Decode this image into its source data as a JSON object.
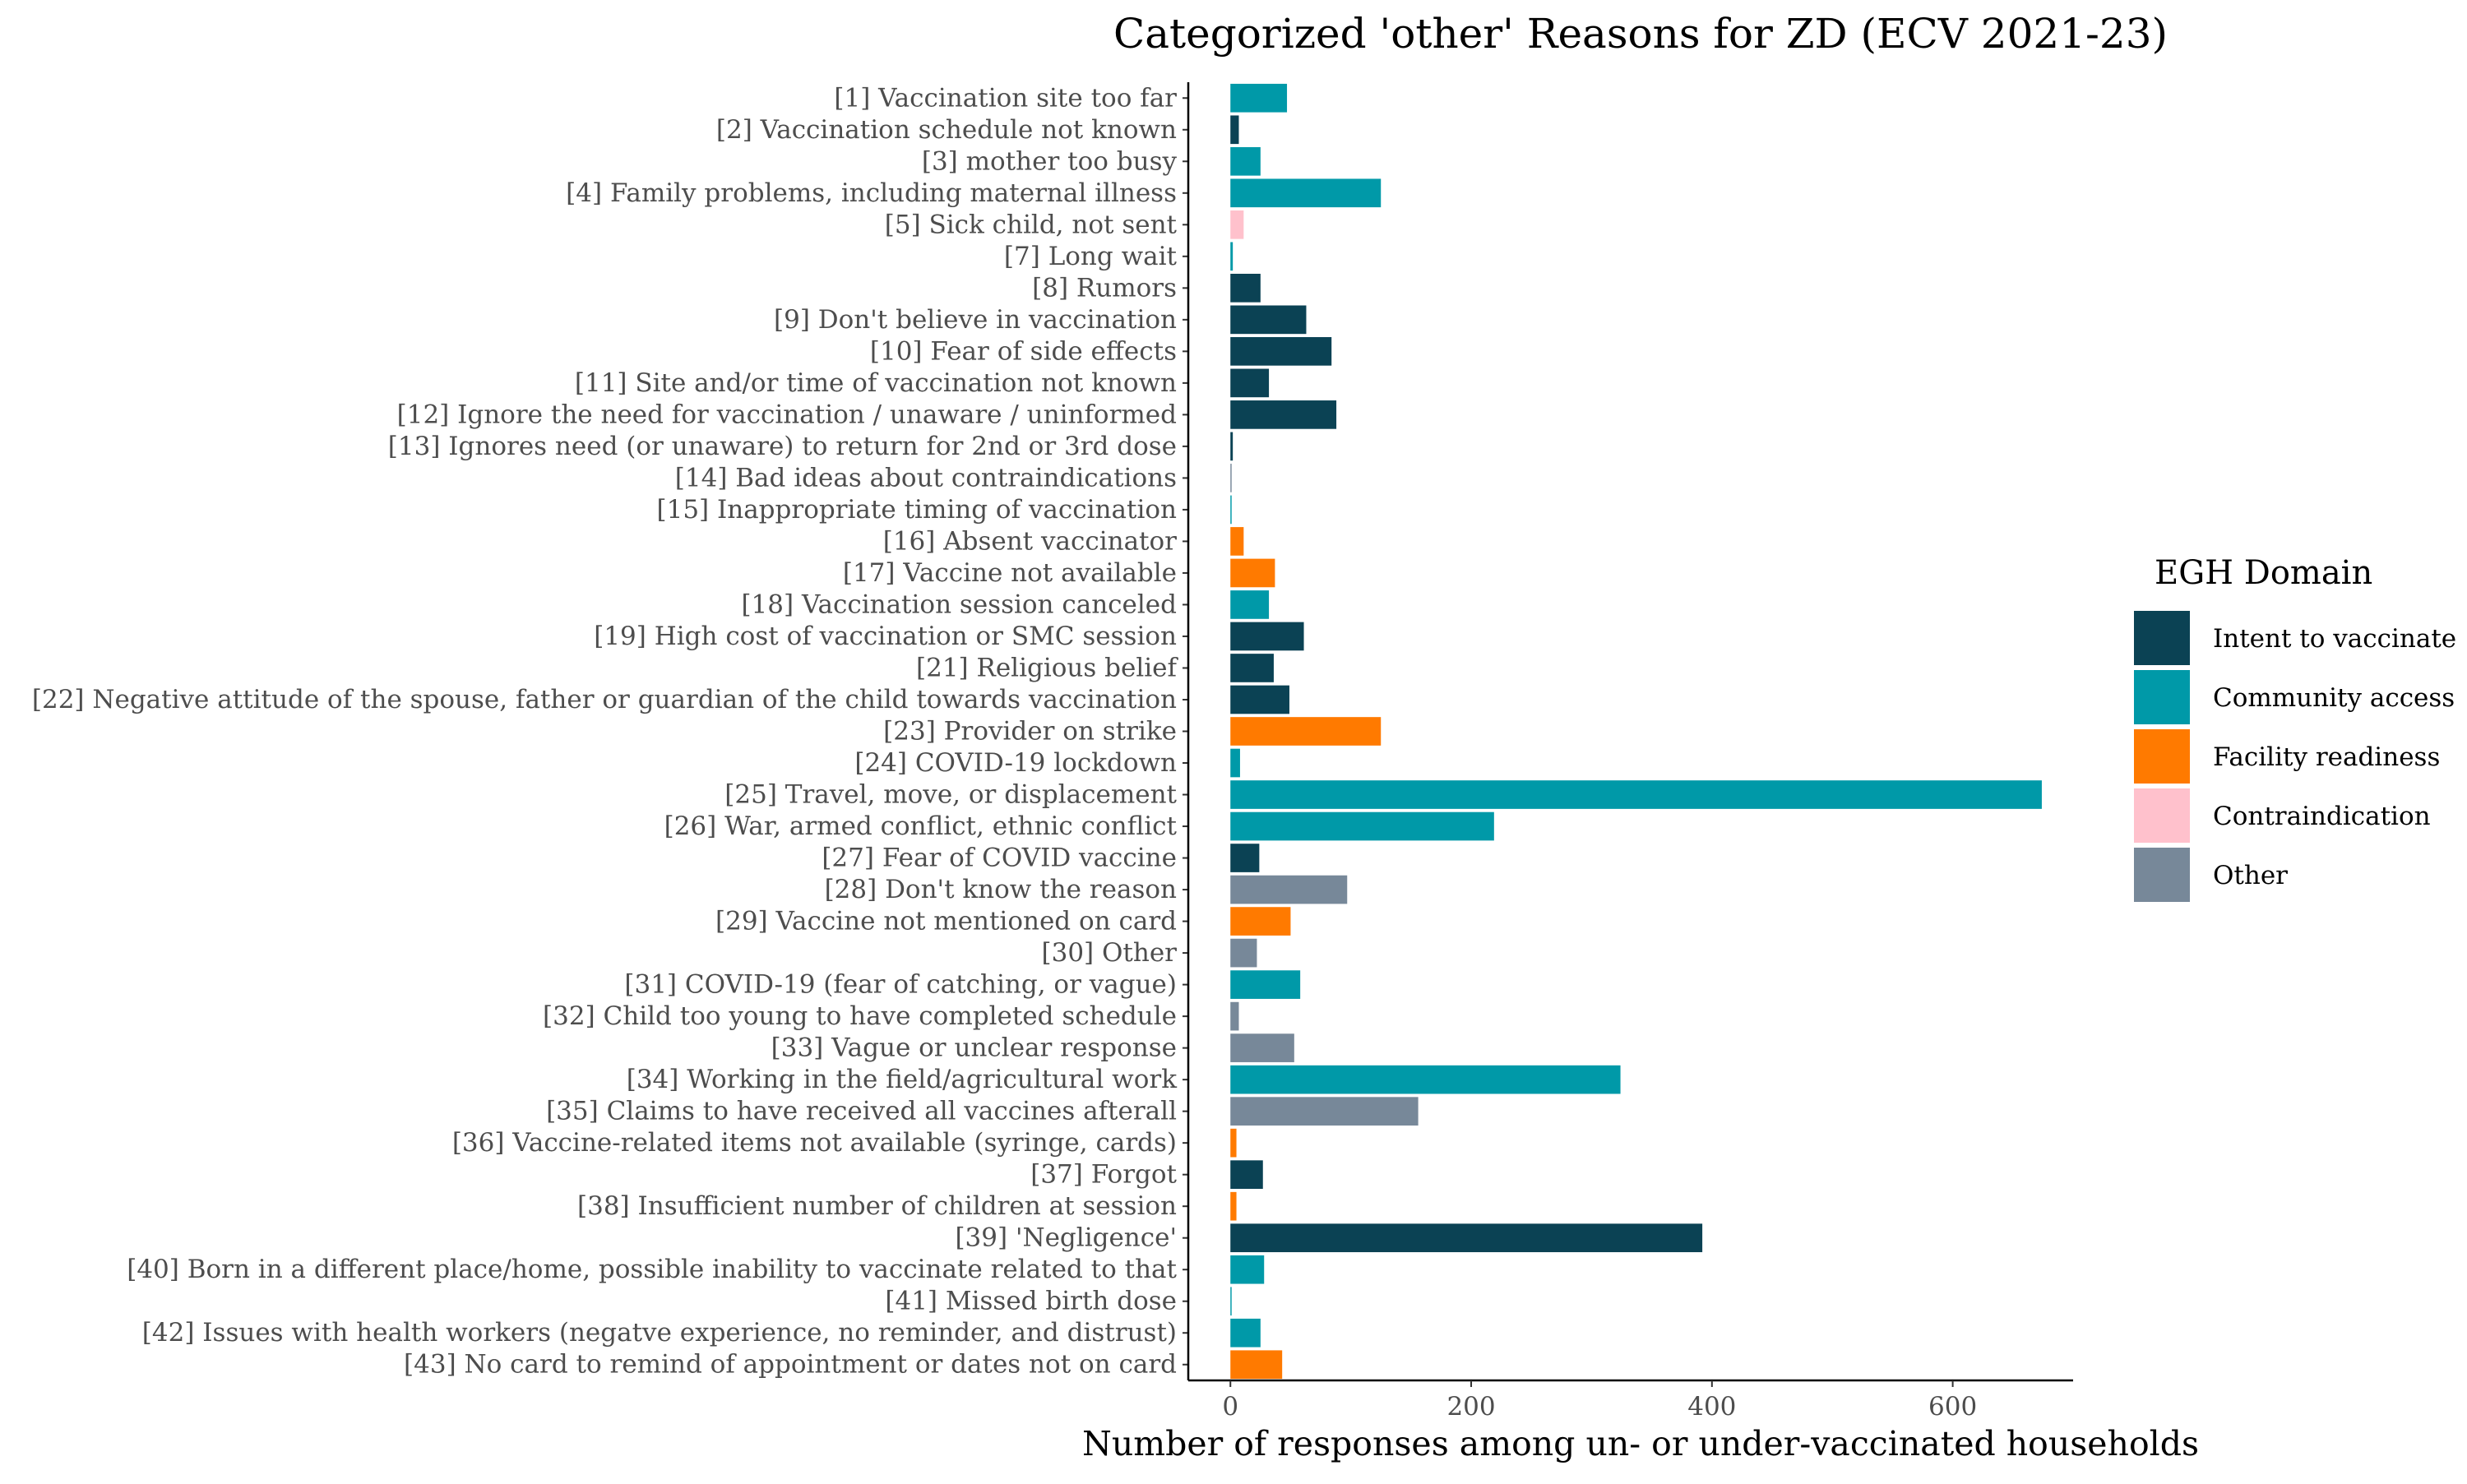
{
  "chart_data": {
    "type": "bar",
    "orientation": "horizontal",
    "title": "Categorized 'other' Reasons for ZD (ECV 2021-23)",
    "xlabel": "Number of responses among un- or under-vaccinated households",
    "ylabel": "",
    "xlim": [
      -35,
      700
    ],
    "xticks": [
      0,
      200,
      400,
      600
    ],
    "grid": false,
    "legend": {
      "title": "EGH Domain",
      "position": "right",
      "entries": [
        {
          "name": "Intent to vaccinate",
          "color": "#0b4254"
        },
        {
          "name": "Community access",
          "color": "#0099a8"
        },
        {
          "name": "Facility readiness",
          "color": "#ff7a00"
        },
        {
          "name": "Contraindication",
          "color": "#ffc1cc"
        },
        {
          "name": "Other",
          "color": "#778899"
        }
      ]
    },
    "bars": [
      {
        "label": "[1] Vaccination site too far",
        "value": 47,
        "domain": "Community access"
      },
      {
        "label": "[2] Vaccination schedule not known",
        "value": 7,
        "domain": "Intent to vaccinate"
      },
      {
        "label": "[3] mother too busy",
        "value": 25,
        "domain": "Community access"
      },
      {
        "label": "[4] Family problems, including maternal illness",
        "value": 125,
        "domain": "Community access"
      },
      {
        "label": "[5] Sick child, not sent",
        "value": 11,
        "domain": "Contraindication"
      },
      {
        "label": "[7] Long wait",
        "value": 2,
        "domain": "Community access"
      },
      {
        "label": "[8] Rumors",
        "value": 25,
        "domain": "Intent to vaccinate"
      },
      {
        "label": "[9] Don't believe in vaccination",
        "value": 63,
        "domain": "Intent to vaccinate"
      },
      {
        "label": "[10] Fear of side effects",
        "value": 84,
        "domain": "Intent to vaccinate"
      },
      {
        "label": "[11] Site and/or time of vaccination not known",
        "value": 32,
        "domain": "Intent to vaccinate"
      },
      {
        "label": "[12] Ignore the need for vaccination  / unaware / uninformed",
        "value": 88,
        "domain": "Intent to vaccinate"
      },
      {
        "label": "[13] Ignores need (or unaware) to return for 2nd or 3rd dose",
        "value": 2,
        "domain": "Intent to vaccinate"
      },
      {
        "label": "[14] Bad ideas about contraindications",
        "value": 1,
        "domain": "Other"
      },
      {
        "label": "[15] Inappropriate timing of vaccination",
        "value": 1,
        "domain": "Community access"
      },
      {
        "label": "[16] Absent vaccinator",
        "value": 11,
        "domain": "Facility readiness"
      },
      {
        "label": "[17] Vaccine not available",
        "value": 37,
        "domain": "Facility readiness"
      },
      {
        "label": "[18] Vaccination session canceled",
        "value": 32,
        "domain": "Community access"
      },
      {
        "label": "[19] High cost of vaccination or SMC session",
        "value": 61,
        "domain": "Intent to vaccinate"
      },
      {
        "label": "[21] Religious belief",
        "value": 36,
        "domain": "Intent to vaccinate"
      },
      {
        "label": "[22] Negative attitude of the spouse, father or guardian of the child towards vaccination",
        "value": 49,
        "domain": "Intent to vaccinate"
      },
      {
        "label": "[23] Provider on strike",
        "value": 125,
        "domain": "Facility readiness"
      },
      {
        "label": "[24] COVID-19 lockdown",
        "value": 8,
        "domain": "Community access"
      },
      {
        "label": "[25] Travel, move, or displacement",
        "value": 674,
        "domain": "Community access"
      },
      {
        "label": "[26] War, armed conflict, ethnic conflict",
        "value": 219,
        "domain": "Community access"
      },
      {
        "label": "[27] Fear of COVID vaccine",
        "value": 24,
        "domain": "Intent to vaccinate"
      },
      {
        "label": "[28] Don't know the reason",
        "value": 97,
        "domain": "Other"
      },
      {
        "label": "[29] Vaccine not mentioned on card",
        "value": 50,
        "domain": "Facility readiness"
      },
      {
        "label": "[30] Other",
        "value": 22,
        "domain": "Other"
      },
      {
        "label": "[31] COVID-19 (fear of catching, or vague)",
        "value": 58,
        "domain": "Community access"
      },
      {
        "label": "[32] Child too young to have completed schedule",
        "value": 7,
        "domain": "Other"
      },
      {
        "label": "[33] Vague or unclear response",
        "value": 53,
        "domain": "Other"
      },
      {
        "label": "[34] Working in the field/agricultural work",
        "value": 324,
        "domain": "Community access"
      },
      {
        "label": "[35] Claims to have received all vaccines afterall",
        "value": 156,
        "domain": "Other"
      },
      {
        "label": "[36] Vaccine-related items not available (syringe, cards)",
        "value": 5,
        "domain": "Facility readiness"
      },
      {
        "label": "[37] Forgot",
        "value": 27,
        "domain": "Intent to vaccinate"
      },
      {
        "label": "[38] Insufficient number of children at session",
        "value": 5,
        "domain": "Facility readiness"
      },
      {
        "label": "[39] 'Negligence'",
        "value": 392,
        "domain": "Intent to vaccinate"
      },
      {
        "label": "[40] Born in a different place/home, possible inability to vaccinate related to that",
        "value": 28,
        "domain": "Community access"
      },
      {
        "label": "[41] Missed birth dose",
        "value": 1,
        "domain": "Community access"
      },
      {
        "label": "[42] Issues with health workers (negatve experience, no reminder, and distrust)",
        "value": 25,
        "domain": "Community access"
      },
      {
        "label": "[43] No card to remind of appointment or dates not on card",
        "value": 43,
        "domain": "Facility readiness"
      }
    ]
  }
}
